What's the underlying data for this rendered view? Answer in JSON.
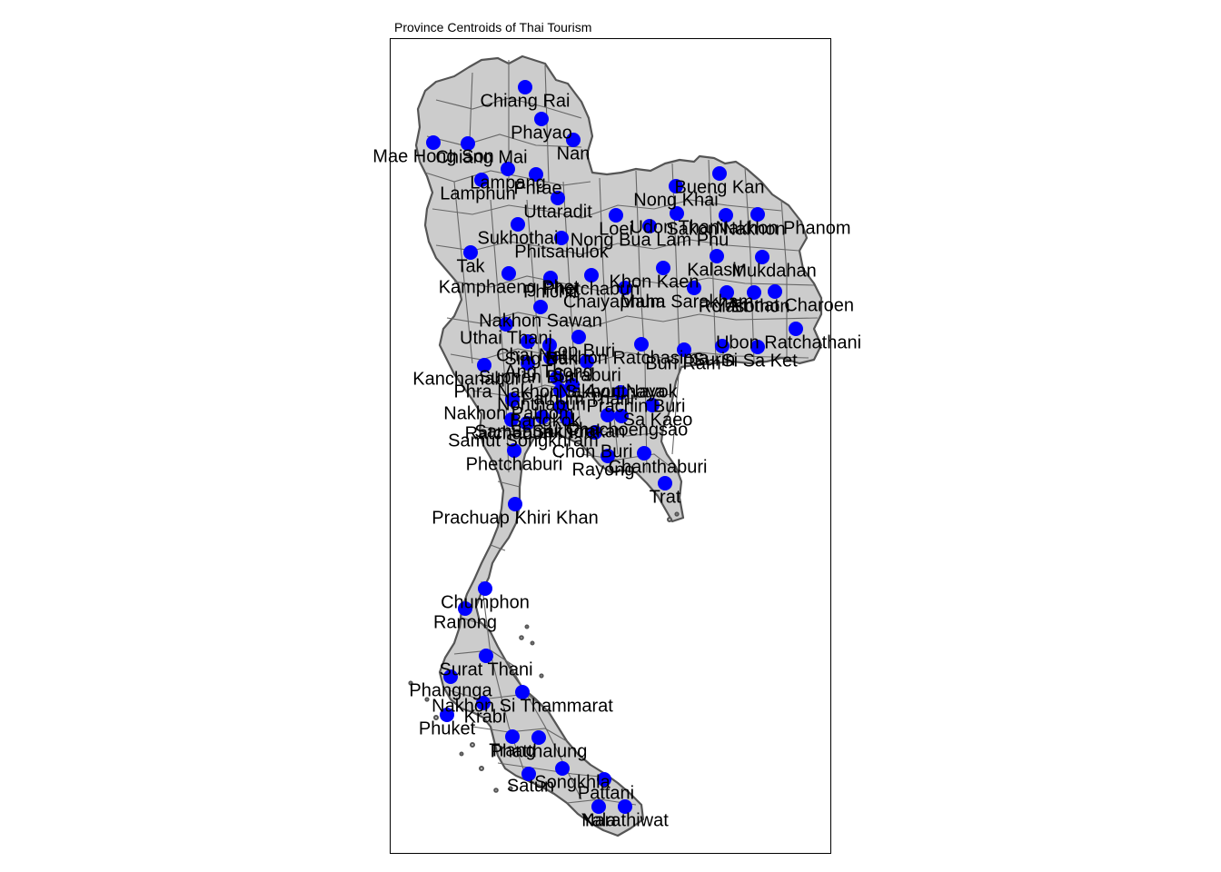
{
  "title": "Province Centroids of Thai Tourism",
  "colors": {
    "land": "#cccccc",
    "border": "#555555",
    "point": "#0000ff",
    "frame": "#000000"
  },
  "provinces": [
    {
      "name": "Chiang Rai"
    },
    {
      "name": "Phayao"
    },
    {
      "name": "Mae Hong Son"
    },
    {
      "name": "Chiang Mai"
    },
    {
      "name": "Nan"
    },
    {
      "name": "Lampang"
    },
    {
      "name": "Phrae"
    },
    {
      "name": "Lamphun"
    },
    {
      "name": "Uttaradit"
    },
    {
      "name": "Bueng Kan"
    },
    {
      "name": "Nong Khai"
    },
    {
      "name": "Loei"
    },
    {
      "name": "Udon Thani"
    },
    {
      "name": "Sakon Nakhon"
    },
    {
      "name": "Nakhon Phanom"
    },
    {
      "name": "Sukhothai"
    },
    {
      "name": "Nong Bua Lam Phu"
    },
    {
      "name": "Phitsanulok"
    },
    {
      "name": "Tak"
    },
    {
      "name": "Kalasin"
    },
    {
      "name": "Mukdahan"
    },
    {
      "name": "Kamphaeng Phet"
    },
    {
      "name": "Phichit"
    },
    {
      "name": "Phetchabun"
    },
    {
      "name": "Khon Kaen"
    },
    {
      "name": "Chaiyaphum"
    },
    {
      "name": "Maha Sarakham"
    },
    {
      "name": "Roi Et"
    },
    {
      "name": "Yasothon"
    },
    {
      "name": "Amnat Charoen"
    },
    {
      "name": "Nakhon Sawan"
    },
    {
      "name": "Uthai Thani"
    },
    {
      "name": "Ubon Ratchathani"
    },
    {
      "name": "Chai Nat"
    },
    {
      "name": "Lop Buri"
    },
    {
      "name": "Sing Buri"
    },
    {
      "name": "Nakhon Ratchasima"
    },
    {
      "name": "Buri Ram"
    },
    {
      "name": "Surin"
    },
    {
      "name": "Si Sa Ket"
    },
    {
      "name": "Ang Thong"
    },
    {
      "name": "Saraburi"
    },
    {
      "name": "Kanchanaburi"
    },
    {
      "name": "Suphan Buri"
    },
    {
      "name": "Phra Nakhon Si Ayutthaya"
    },
    {
      "name": "Nakhon Nayok"
    },
    {
      "name": "Pathum Thani"
    },
    {
      "name": "Nonthaburi"
    },
    {
      "name": "Prachin Buri"
    },
    {
      "name": "Nakhon Pathom"
    },
    {
      "name": "Bangkok"
    },
    {
      "name": "Sa Kaeo"
    },
    {
      "name": "Ratchaburi"
    },
    {
      "name": "Samut Sakhon"
    },
    {
      "name": "Samut Prakan"
    },
    {
      "name": "Chachoengsao"
    },
    {
      "name": "Samut Songkhram"
    },
    {
      "name": "Chon Buri"
    },
    {
      "name": "Phetchaburi"
    },
    {
      "name": "Rayong"
    },
    {
      "name": "Chanthaburi"
    },
    {
      "name": "Trat"
    },
    {
      "name": "Prachuap Khiri Khan"
    },
    {
      "name": "Chumphon"
    },
    {
      "name": "Ranong"
    },
    {
      "name": "Surat Thani"
    },
    {
      "name": "Phangnga"
    },
    {
      "name": "Nakhon Si Thammarat"
    },
    {
      "name": "Krabi"
    },
    {
      "name": "Phuket"
    },
    {
      "name": "Trang"
    },
    {
      "name": "Phatthalung"
    },
    {
      "name": "Satun"
    },
    {
      "name": "Songkhla"
    },
    {
      "name": "Pattani"
    },
    {
      "name": "Yala"
    },
    {
      "name": "Narathiwat"
    }
  ]
}
